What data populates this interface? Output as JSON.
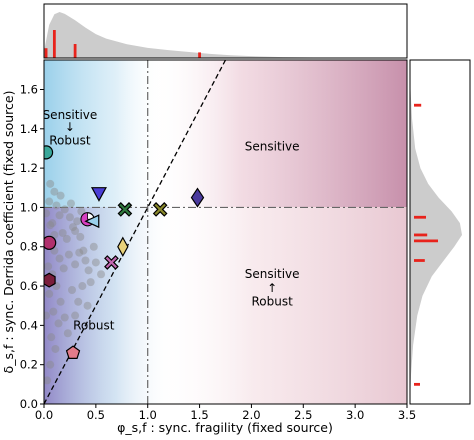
{
  "chart_data": {
    "type": "scatter",
    "xlabel": "φ_s,f : sync. fragility (fixed source)",
    "ylabel": "δ_s,f : sync. Derrida coefficient (fixed source)",
    "xlim": [
      0,
      3.5
    ],
    "ylim": [
      0,
      1.75
    ],
    "x_ticks": [
      "0.0",
      "0.5",
      "1.0",
      "1.5",
      "2.0",
      "2.5",
      "3.0",
      "3.5"
    ],
    "y_ticks": [
      "0.0",
      "0.2",
      "0.4",
      "0.6",
      "0.8",
      "1.0",
      "1.2",
      "1.4",
      "1.6"
    ],
    "grid": false,
    "reference_lines": {
      "vertical_x": 1.0,
      "horizontal_y": 1.0,
      "diagonal": "y = x"
    },
    "region_labels": [
      {
        "text": "Sensitive",
        "x": 0.25,
        "y": 1.45
      },
      {
        "text": "↓",
        "x": 0.25,
        "y": 1.39
      },
      {
        "text": "Robust",
        "x": 0.25,
        "y": 1.32
      },
      {
        "text": "Sensitive",
        "x": 2.2,
        "y": 1.29
      },
      {
        "text": "Robust",
        "x": 0.48,
        "y": 0.38
      },
      {
        "text": "Sensitive",
        "x": 2.2,
        "y": 0.64
      },
      {
        "text": "↑",
        "x": 2.2,
        "y": 0.57
      },
      {
        "text": "Robust",
        "x": 2.2,
        "y": 0.5
      }
    ],
    "highlighted_points": [
      {
        "x": 0.02,
        "y": 1.28,
        "marker": "circle",
        "color": "#3aa79a"
      },
      {
        "x": 0.53,
        "y": 1.07,
        "marker": "triangle-down",
        "color": "#4b3fd6"
      },
      {
        "x": 0.78,
        "y": 0.99,
        "marker": "x",
        "color": "#2e7a3e"
      },
      {
        "x": 1.12,
        "y": 0.99,
        "marker": "x",
        "color": "#8a8a2c"
      },
      {
        "x": 1.48,
        "y": 1.05,
        "marker": "diamond",
        "color": "#4b3a9e"
      },
      {
        "x": 0.42,
        "y": 0.94,
        "marker": "circle-pie",
        "color": "#d63fc0"
      },
      {
        "x": 0.47,
        "y": 0.93,
        "marker": "triangle-left",
        "color": "#9ad0ec"
      },
      {
        "x": 0.76,
        "y": 0.8,
        "marker": "thin-diamond",
        "color": "#e8d17a"
      },
      {
        "x": 0.65,
        "y": 0.72,
        "marker": "x",
        "color": "#c267b1"
      },
      {
        "x": 0.05,
        "y": 0.82,
        "marker": "circle",
        "color": "#b0306d"
      },
      {
        "x": 0.05,
        "y": 0.63,
        "marker": "hexagon",
        "color": "#7a1e3c"
      },
      {
        "x": 0.28,
        "y": 0.26,
        "marker": "pentagon",
        "color": "#e27b8a"
      }
    ],
    "background_points": [
      [
        0.02,
        0.97
      ],
      [
        0.05,
        1.03
      ],
      [
        0.08,
        0.92
      ],
      [
        0.12,
        1.01
      ],
      [
        0.15,
        0.96
      ],
      [
        0.2,
        0.99
      ],
      [
        0.25,
        0.95
      ],
      [
        0.3,
        0.88
      ],
      [
        0.35,
        0.85
      ],
      [
        0.38,
        0.78
      ],
      [
        0.4,
        0.73
      ],
      [
        0.43,
        0.68
      ],
      [
        0.45,
        0.62
      ],
      [
        0.48,
        0.8
      ],
      [
        0.22,
        0.84
      ],
      [
        0.28,
        0.9
      ],
      [
        0.32,
        0.93
      ],
      [
        0.18,
        0.87
      ],
      [
        0.1,
        0.86
      ],
      [
        0.06,
        0.91
      ],
      [
        0.04,
        0.7
      ],
      [
        0.08,
        0.66
      ],
      [
        0.1,
        0.78
      ],
      [
        0.15,
        0.74
      ],
      [
        0.19,
        0.69
      ],
      [
        0.24,
        0.76
      ],
      [
        0.27,
        0.58
      ],
      [
        0.33,
        0.52
      ],
      [
        0.37,
        0.6
      ],
      [
        0.12,
        0.6
      ],
      [
        0.16,
        0.52
      ],
      [
        0.09,
        0.47
      ],
      [
        0.14,
        0.41
      ],
      [
        0.07,
        0.34
      ],
      [
        0.2,
        0.44
      ],
      [
        0.23,
        0.36
      ],
      [
        0.3,
        0.45
      ],
      [
        0.11,
        0.28
      ],
      [
        0.06,
        0.2
      ],
      [
        0.03,
        0.12
      ],
      [
        0.05,
        0.56
      ],
      [
        0.02,
        0.45
      ],
      [
        0.42,
        0.5
      ],
      [
        0.5,
        0.72
      ],
      [
        0.55,
        0.66
      ],
      [
        0.36,
        0.98
      ],
      [
        0.26,
        1.02
      ],
      [
        0.16,
        1.06
      ],
      [
        0.1,
        1.08
      ],
      [
        0.3,
        0.71
      ],
      [
        0.34,
        0.77
      ],
      [
        0.06,
        1.12
      ]
    ],
    "top_marginal": {
      "variable": "x",
      "kde": [
        [
          0,
          0.15
        ],
        [
          0.05,
          0.72
        ],
        [
          0.1,
          0.95
        ],
        [
          0.15,
          1.0
        ],
        [
          0.2,
          0.96
        ],
        [
          0.3,
          0.82
        ],
        [
          0.4,
          0.66
        ],
        [
          0.5,
          0.52
        ],
        [
          0.6,
          0.42
        ],
        [
          0.8,
          0.3
        ],
        [
          1.0,
          0.22
        ],
        [
          1.2,
          0.17
        ],
        [
          1.4,
          0.13
        ],
        [
          1.6,
          0.09
        ],
        [
          1.8,
          0.06
        ],
        [
          2.0,
          0.04
        ],
        [
          2.3,
          0.02
        ],
        [
          2.6,
          0.01
        ],
        [
          3.0,
          0.0
        ]
      ],
      "ticks": [
        [
          0.02,
          0.35
        ],
        [
          0.1,
          1.0
        ],
        [
          0.3,
          0.5
        ],
        [
          1.5,
          0.2
        ]
      ]
    },
    "right_marginal": {
      "variable": "y",
      "kde": [
        [
          0.0,
          0.0
        ],
        [
          0.15,
          0.02
        ],
        [
          0.3,
          0.06
        ],
        [
          0.45,
          0.14
        ],
        [
          0.55,
          0.24
        ],
        [
          0.65,
          0.42
        ],
        [
          0.72,
          0.62
        ],
        [
          0.8,
          0.85
        ],
        [
          0.86,
          1.0
        ],
        [
          0.92,
          0.96
        ],
        [
          0.98,
          0.8
        ],
        [
          1.05,
          0.55
        ],
        [
          1.12,
          0.35
        ],
        [
          1.2,
          0.2
        ],
        [
          1.3,
          0.1
        ],
        [
          1.45,
          0.04
        ],
        [
          1.6,
          0.01
        ],
        [
          1.75,
          0.0
        ]
      ],
      "ticks": [
        [
          0.1,
          0.25
        ],
        [
          0.73,
          0.45
        ],
        [
          0.83,
          1.0
        ],
        [
          0.86,
          0.55
        ],
        [
          0.95,
          0.5
        ],
        [
          1.52,
          0.3
        ]
      ]
    }
  }
}
